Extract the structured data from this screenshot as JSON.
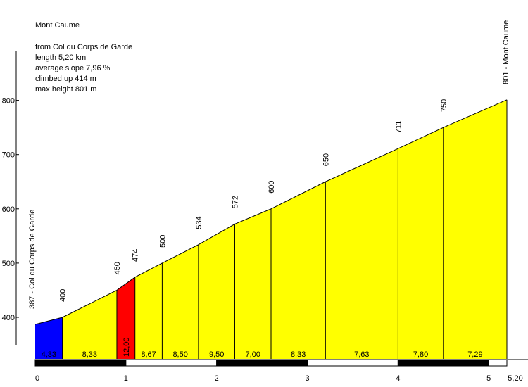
{
  "info": {
    "title": "Mont Caume",
    "from": "from Col du Corps de Garde",
    "length": "length 5,20 km",
    "avg_slope": "average slope 7,96 %",
    "climbed": "climbed up 414 m",
    "max_height": "max height 801 m"
  },
  "chart_data": {
    "type": "area",
    "title": "Mont Caume",
    "xlabel": "",
    "ylabel": "",
    "xlim": [
      0,
      5.2
    ],
    "ylim": [
      350,
      801
    ],
    "y_ticks": [
      400,
      500,
      600,
      700,
      800
    ],
    "x_ticks": [
      {
        "value": 0,
        "label": "0"
      },
      {
        "value": 1,
        "label": "1"
      },
      {
        "value": 2,
        "label": "2"
      },
      {
        "value": 3,
        "label": "3"
      },
      {
        "value": 4,
        "label": "4"
      },
      {
        "value": 5,
        "label": "5"
      },
      {
        "value": 5.2,
        "label": "5,20"
      }
    ],
    "points": [
      {
        "x": 0.0,
        "y": 387,
        "label": "387 - Col du Corps de Garde"
      },
      {
        "x": 0.3,
        "y": 400,
        "label": "400"
      },
      {
        "x": 0.9,
        "y": 450,
        "label": "450"
      },
      {
        "x": 1.1,
        "y": 474,
        "label": "474"
      },
      {
        "x": 1.4,
        "y": 500,
        "label": "500"
      },
      {
        "x": 1.8,
        "y": 534,
        "label": "534"
      },
      {
        "x": 2.2,
        "y": 572,
        "label": "572"
      },
      {
        "x": 2.6,
        "y": 600,
        "label": "600"
      },
      {
        "x": 3.2,
        "y": 650,
        "label": "650"
      },
      {
        "x": 4.0,
        "y": 711,
        "label": "711"
      },
      {
        "x": 4.5,
        "y": 750,
        "label": "750"
      },
      {
        "x": 5.2,
        "y": 801,
        "label": "801 - Mont Caume"
      }
    ],
    "segments": [
      {
        "slope": "4,33",
        "color": "#0000ff"
      },
      {
        "slope": "8,33",
        "color": "#ffff00"
      },
      {
        "slope": "12,00",
        "color": "#ff0000"
      },
      {
        "slope": "8,67",
        "color": "#ffff00"
      },
      {
        "slope": "8,50",
        "color": "#ffff00"
      },
      {
        "slope": "9,50",
        "color": "#ffff00"
      },
      {
        "slope": "7,00",
        "color": "#ffff00"
      },
      {
        "slope": "8,33",
        "color": "#ffff00"
      },
      {
        "slope": "7,63",
        "color": "#ffff00"
      },
      {
        "slope": "7,80",
        "color": "#ffff00"
      },
      {
        "slope": "7,29",
        "color": "#ffff00"
      }
    ],
    "grid": false,
    "legend": "none"
  }
}
